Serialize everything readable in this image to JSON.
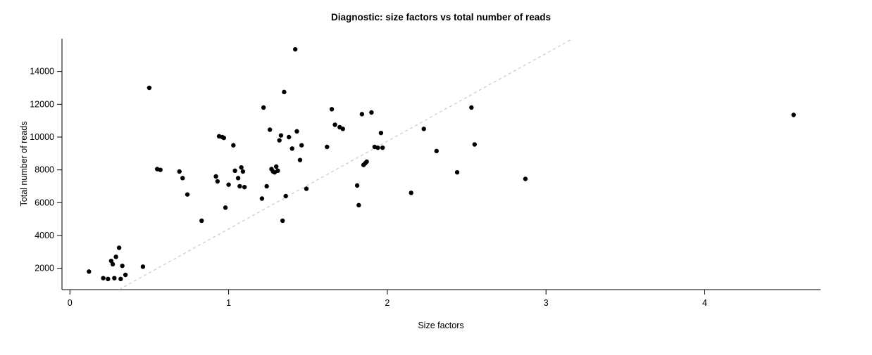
{
  "title": "Diagnostic: size factors vs total number of reads",
  "chart_data": {
    "type": "scatter",
    "title": "Diagnostic: size factors vs total number of reads",
    "xlabel": "Size factors",
    "ylabel": "Total number of reads",
    "xlim": [
      -0.05,
      4.73
    ],
    "ylim": [
      700,
      16000
    ],
    "x_ticks": [
      0,
      1,
      2,
      3,
      4
    ],
    "y_ticks": [
      2000,
      4000,
      6000,
      8000,
      10000,
      12000,
      14000
    ],
    "grid": false,
    "legend": null,
    "point_color": "#000000",
    "point_radius": 3.2,
    "trend_line": {
      "style": "dashed",
      "color": "#c8c8c8",
      "slope": 5350,
      "intercept": -950,
      "x_start": 0.0,
      "x_end": 3.5
    },
    "points": [
      [
        0.12,
        1800
      ],
      [
        0.21,
        1400
      ],
      [
        0.24,
        1350
      ],
      [
        0.26,
        2450
      ],
      [
        0.27,
        2250
      ],
      [
        0.28,
        1400
      ],
      [
        0.29,
        2700
      ],
      [
        0.31,
        3250
      ],
      [
        0.32,
        1350
      ],
      [
        0.33,
        2150
      ],
      [
        0.35,
        1600
      ],
      [
        0.46,
        2100
      ],
      [
        0.5,
        13000
      ],
      [
        0.55,
        8050
      ],
      [
        0.57,
        8000
      ],
      [
        0.69,
        7900
      ],
      [
        0.71,
        7500
      ],
      [
        0.74,
        6500
      ],
      [
        0.83,
        4900
      ],
      [
        0.92,
        7600
      ],
      [
        0.93,
        7300
      ],
      [
        0.94,
        10050
      ],
      [
        0.96,
        10000
      ],
      [
        0.97,
        9950
      ],
      [
        0.98,
        5700
      ],
      [
        1.0,
        7100
      ],
      [
        1.03,
        9500
      ],
      [
        1.04,
        7950
      ],
      [
        1.06,
        7500
      ],
      [
        1.07,
        7000
      ],
      [
        1.08,
        8150
      ],
      [
        1.09,
        7900
      ],
      [
        1.1,
        6950
      ],
      [
        1.21,
        6250
      ],
      [
        1.22,
        11800
      ],
      [
        1.24,
        7000
      ],
      [
        1.26,
        10450
      ],
      [
        1.27,
        8050
      ],
      [
        1.28,
        7900
      ],
      [
        1.29,
        7850
      ],
      [
        1.3,
        8200
      ],
      [
        1.31,
        7950
      ],
      [
        1.32,
        9800
      ],
      [
        1.33,
        10100
      ],
      [
        1.34,
        4900
      ],
      [
        1.35,
        12750
      ],
      [
        1.36,
        6400
      ],
      [
        1.38,
        10000
      ],
      [
        1.4,
        9300
      ],
      [
        1.42,
        15350
      ],
      [
        1.43,
        10350
      ],
      [
        1.45,
        8600
      ],
      [
        1.46,
        9500
      ],
      [
        1.49,
        6850
      ],
      [
        1.62,
        9400
      ],
      [
        1.65,
        11700
      ],
      [
        1.67,
        10750
      ],
      [
        1.7,
        10600
      ],
      [
        1.72,
        10500
      ],
      [
        1.81,
        7050
      ],
      [
        1.82,
        5850
      ],
      [
        1.84,
        11400
      ],
      [
        1.85,
        8300
      ],
      [
        1.86,
        8400
      ],
      [
        1.87,
        8500
      ],
      [
        1.9,
        11500
      ],
      [
        1.92,
        9400
      ],
      [
        1.94,
        9350
      ],
      [
        1.96,
        10250
      ],
      [
        1.97,
        9350
      ],
      [
        2.15,
        6600
      ],
      [
        2.23,
        10500
      ],
      [
        2.31,
        9150
      ],
      [
        2.44,
        7850
      ],
      [
        2.53,
        11800
      ],
      [
        2.55,
        9550
      ],
      [
        2.87,
        7450
      ],
      [
        4.56,
        11350
      ]
    ]
  }
}
